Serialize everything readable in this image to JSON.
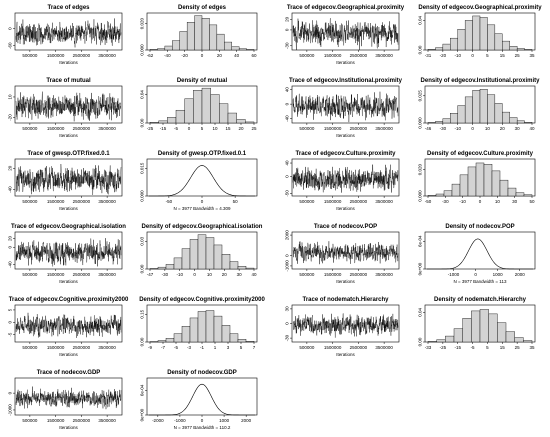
{
  "chart_data": [
    {
      "id": "trace-edges",
      "type": "line",
      "title": "Trace of edges",
      "xlabel": "Iterations",
      "xticks": [
        "500000",
        "1500000",
        "2500000",
        "3500000"
      ],
      "yticks": [
        "-60",
        "0"
      ],
      "ylim": [
        -75,
        55
      ],
      "amp": 38,
      "seed": 1
    },
    {
      "id": "density-edges",
      "type": "bar",
      "title": "Density of edges",
      "xticks": [
        "-62",
        "-40",
        "-20",
        "0",
        "20",
        "40",
        "60"
      ],
      "yticks": [
        "0.000",
        "0.020"
      ],
      "ylim": [
        0,
        0.028
      ],
      "values": [
        0.0005,
        0.001,
        0.003,
        0.007,
        0.014,
        0.021,
        0.026,
        0.024,
        0.019,
        0.012,
        0.006,
        0.0025,
        0.001,
        0.0004
      ]
    },
    {
      "id": "trace-edgecov-geo-prox",
      "type": "line",
      "title": "Trace of edgecov.Geographical.proximity",
      "xlabel": "Iterations",
      "xticks": [
        "500000",
        "1500000",
        "2500000",
        "3500000"
      ],
      "yticks": [
        "-30",
        "0",
        "20"
      ],
      "ylim": [
        -38,
        32
      ],
      "amp": 22,
      "seed": 2
    },
    {
      "id": "density-edgecov-geo-prox",
      "type": "bar",
      "title": "Density of edgecov.Geographical.proximity",
      "xticks": [
        "-31",
        "-20",
        "-10",
        "0",
        "5",
        "15",
        "25",
        "35"
      ],
      "yticks": [
        "0.00",
        "0.04"
      ],
      "ylim": [
        0,
        0.05
      ],
      "values": [
        0.001,
        0.003,
        0.008,
        0.016,
        0.028,
        0.04,
        0.046,
        0.044,
        0.034,
        0.022,
        0.012,
        0.005,
        0.002,
        0.0008
      ]
    },
    {
      "id": "trace-mutual",
      "type": "line",
      "title": "Trace of mutual",
      "xlabel": "Iterations",
      "xticks": [
        "500000",
        "1500000",
        "2500000",
        "3500000"
      ],
      "yticks": [
        "-20",
        "10"
      ],
      "ylim": [
        -28,
        26
      ],
      "amp": 17,
      "seed": 3
    },
    {
      "id": "density-mutual",
      "type": "bar",
      "title": "Density of mutual",
      "xticks": [
        "-25",
        "-15",
        "-5",
        "0",
        "5",
        "10",
        "15",
        "20",
        "25"
      ],
      "yticks": [
        "0.00",
        "0.04"
      ],
      "ylim": [
        0,
        0.052
      ],
      "values": [
        0.001,
        0.003,
        0.008,
        0.018,
        0.034,
        0.046,
        0.049,
        0.04,
        0.027,
        0.014,
        0.005,
        0.0015
      ]
    },
    {
      "id": "trace-edgecov-inst-prox",
      "type": "line",
      "title": "Trace of edgecov.Institutional.proximity",
      "xlabel": "Iterations",
      "xticks": [
        "500000",
        "1500000",
        "2500000",
        "3500000"
      ],
      "yticks": [
        "-40",
        "0",
        "40"
      ],
      "ylim": [
        -52,
        50
      ],
      "amp": 32,
      "seed": 4
    },
    {
      "id": "density-edgecov-inst-prox",
      "type": "bar",
      "title": "Density of edgecov.Institutional.proximity",
      "xticks": [
        "-46",
        "-30",
        "-10",
        "0",
        "10",
        "20",
        "30",
        "40"
      ],
      "yticks": [
        "0.000",
        "0.025"
      ],
      "ylim": [
        0,
        0.034
      ],
      "values": [
        0.0005,
        0.0015,
        0.004,
        0.009,
        0.016,
        0.024,
        0.03,
        0.031,
        0.026,
        0.018,
        0.01,
        0.005,
        0.002,
        0.0007
      ]
    },
    {
      "id": "trace-gwesp",
      "type": "line",
      "title": "Trace of gwesp.OTP.fixed.0.1",
      "xlabel": "Iterations",
      "xticks": [
        "500000",
        "1500000",
        "2500000",
        "3500000"
      ],
      "yticks": [
        "-40",
        "20"
      ],
      "ylim": [
        -58,
        46
      ],
      "amp": 34,
      "seed": 5
    },
    {
      "id": "density-gwesp",
      "type": "density",
      "title": "Density of gwesp.OTP.fixed.0.1",
      "xticks": [
        "-50",
        "0",
        "50"
      ],
      "yticks": [
        "0.000",
        "0.015"
      ],
      "ylim": [
        0,
        0.02
      ],
      "xlim": [
        -80,
        80
      ],
      "mean": 0,
      "sd": 17,
      "peak": 0.0165,
      "subtitle": "N = 3977   Bandwidth = 4.309"
    },
    {
      "id": "trace-edgecov-culture-prox",
      "type": "line",
      "title": "Trace of edgecov.Culture.proximity",
      "xlabel": "Iterations",
      "xticks": [
        "500000",
        "1500000",
        "2500000",
        "3500000"
      ],
      "yticks": [
        "-50",
        "0",
        "40"
      ],
      "ylim": [
        -58,
        52
      ],
      "amp": 34,
      "seed": 6
    },
    {
      "id": "density-edgecov-culture-prox",
      "type": "bar",
      "title": "Density of edgecov.Culture.proximity",
      "xticks": [
        "-50",
        "-30",
        "-10",
        "0",
        "10",
        "30",
        "50"
      ],
      "yticks": [
        "0.000",
        "0.020"
      ],
      "ylim": [
        0,
        0.028
      ],
      "values": [
        0.0005,
        0.0015,
        0.004,
        0.009,
        0.016,
        0.022,
        0.025,
        0.024,
        0.019,
        0.012,
        0.006,
        0.0025,
        0.001
      ]
    },
    {
      "id": "trace-edgecov-geo-iso",
      "type": "line",
      "title": "Trace of edgecov.Geographical.isolation",
      "xlabel": "Iterations",
      "xticks": [
        "500000",
        "1500000",
        "2500000",
        "3500000"
      ],
      "yticks": [
        "-40",
        "0",
        "20"
      ],
      "ylim": [
        -50,
        35
      ],
      "amp": 26,
      "seed": 7
    },
    {
      "id": "density-edgecov-geo-iso",
      "type": "bar",
      "title": "Density of edgecov.Geographical.isolation",
      "xticks": [
        "-47",
        "-30",
        "-10",
        "0",
        "10",
        "20",
        "30",
        "40"
      ],
      "yticks": [
        "0.00",
        "0.03"
      ],
      "ylim": [
        0,
        0.04
      ],
      "values": [
        0.0005,
        0.002,
        0.005,
        0.012,
        0.022,
        0.032,
        0.037,
        0.034,
        0.026,
        0.016,
        0.008,
        0.003,
        0.001
      ]
    },
    {
      "id": "trace-nodecov-pop",
      "type": "line",
      "title": "Trace of nodecov.POP",
      "xlabel": "Iterations",
      "xticks": [
        "500000",
        "1500000",
        "2500000",
        "3500000"
      ],
      "yticks": [
        "-1000",
        "0",
        "2000"
      ],
      "ylim": [
        -1300,
        2300
      ],
      "amp": 900,
      "seed": 8
    },
    {
      "id": "density-nodecov-pop",
      "type": "density",
      "title": "Density of nodecov.POP",
      "xticks": [
        "-1000",
        "0",
        "1000",
        "2000"
      ],
      "yticks": [
        "0e+00",
        "6e-04"
      ],
      "ylim": [
        0,
        0.0008
      ],
      "xlim": [
        -2200,
        2600
      ],
      "mean": 100,
      "sd": 420,
      "peak": 0.00065,
      "subtitle": "N = 3977   Bandwidth = 113"
    },
    {
      "id": "trace-edgecov-cog-prox",
      "type": "line",
      "title": "Trace of edgecov.Cognitive.proximity2000",
      "xlabel": "Iterations",
      "xticks": [
        "500000",
        "1500000",
        "2500000",
        "3500000"
      ],
      "yticks": [
        "-5",
        "0",
        "5"
      ],
      "ylim": [
        -8,
        7
      ],
      "amp": 3.8,
      "seed": 9
    },
    {
      "id": "density-edgecov-cog-prox",
      "type": "bar",
      "title": "Density of edgecov.Cognitive.proximity2000",
      "xticks": [
        "-9",
        "-7",
        "-5",
        "-3",
        "-1",
        "1",
        "3",
        "5",
        "7"
      ],
      "yticks": [
        "0.00",
        "0.15"
      ],
      "ylim": [
        0,
        0.2
      ],
      "values": [
        0.002,
        0.008,
        0.02,
        0.045,
        0.085,
        0.13,
        0.165,
        0.17,
        0.14,
        0.09,
        0.045,
        0.015,
        0.004
      ]
    },
    {
      "id": "trace-nodematch-hierarchy",
      "type": "line",
      "title": "Trace of nodematch.Hierarchy",
      "xlabel": "Iterations",
      "xticks": [
        "500000",
        "1500000",
        "2500000",
        "3500000"
      ],
      "yticks": [
        "-30",
        "0",
        "30"
      ],
      "ylim": [
        -38,
        38
      ],
      "amp": 20,
      "seed": 10
    },
    {
      "id": "density-nodematch-hierarchy",
      "type": "bar",
      "title": "Density of nodematch.Hierarchy",
      "xticks": [
        "-33",
        "-25",
        "-15",
        "-5",
        "5",
        "15",
        "25",
        "35"
      ],
      "yticks": [
        "0.00",
        "0.04"
      ],
      "ylim": [
        0,
        0.05
      ],
      "values": [
        0.0008,
        0.003,
        0.008,
        0.018,
        0.032,
        0.042,
        0.044,
        0.038,
        0.026,
        0.014,
        0.006,
        0.002
      ]
    },
    {
      "id": "trace-nodecov-gdp",
      "type": "line",
      "title": "Trace of nodecov.GDP",
      "xlabel": "Iterations",
      "xticks": [
        "500000",
        "1500000",
        "2500000",
        "3500000"
      ],
      "yticks": [
        "-1000",
        "0"
      ],
      "ylim": [
        -1300,
        900
      ],
      "amp": 500,
      "seed": 11
    },
    {
      "id": "density-nodecov-gdp",
      "type": "density",
      "title": "Density of nodecov.GDP",
      "xticks": [
        "-2000",
        "-1000",
        "0",
        "1000",
        "2000"
      ],
      "yticks": [
        "0e+00",
        "6e-04"
      ],
      "ylim": [
        0,
        0.0009
      ],
      "xlim": [
        -2400,
        2400
      ],
      "mean": 0,
      "sd": 420,
      "peak": 0.00075,
      "subtitle": "N = 3977   Bandwidth = 110.2"
    }
  ]
}
